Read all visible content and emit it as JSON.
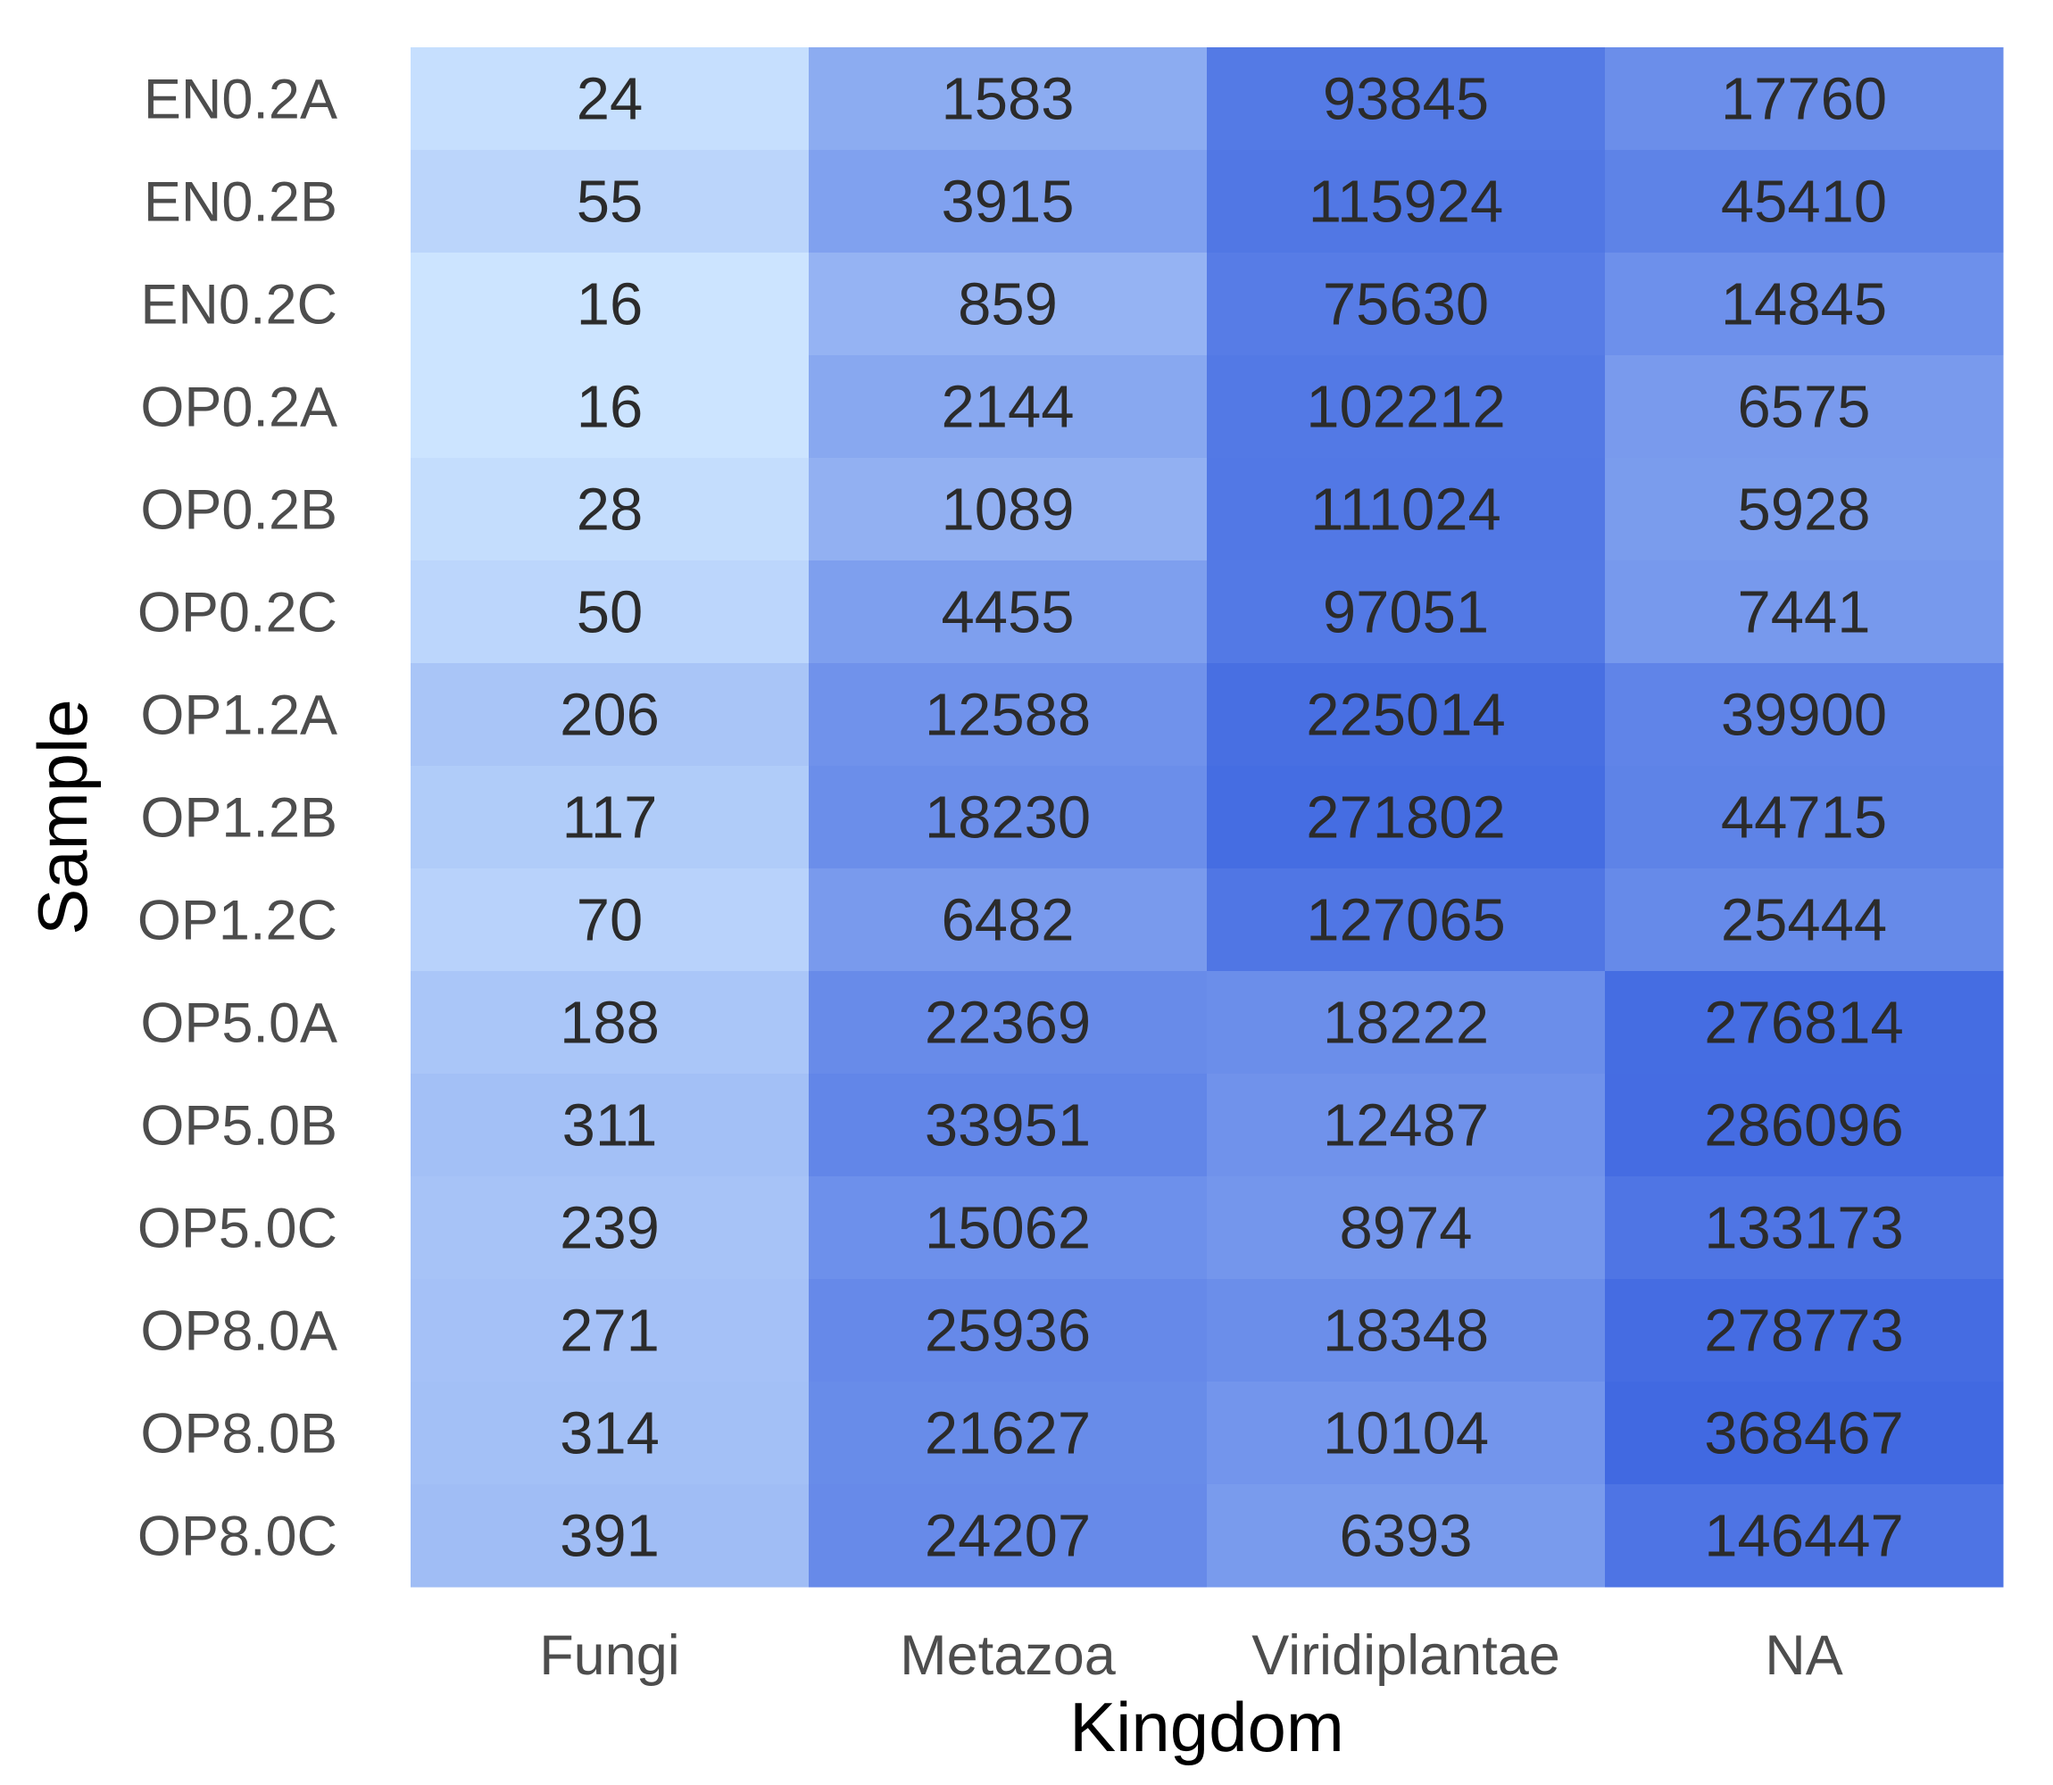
{
  "chart_data": {
    "type": "heatmap",
    "xlabel": "Kingdom",
    "ylabel": "Sample",
    "x_categories": [
      "Fungi",
      "Metazoa",
      "Viridiplantae",
      "NA"
    ],
    "y_categories": [
      "EN0.2A",
      "EN0.2B",
      "EN0.2C",
      "OP0.2A",
      "OP0.2B",
      "OP0.2C",
      "OP1.2A",
      "OP1.2B",
      "OP1.2C",
      "OP5.0A",
      "OP5.0B",
      "OP5.0C",
      "OP8.0A",
      "OP8.0B",
      "OP8.0C"
    ],
    "values": [
      [
        24,
        1583,
        93845,
        17760
      ],
      [
        55,
        3915,
        115924,
        45410
      ],
      [
        16,
        859,
        75630,
        14845
      ],
      [
        16,
        2144,
        102212,
        6575
      ],
      [
        28,
        1089,
        111024,
        5928
      ],
      [
        50,
        4455,
        97051,
        7441
      ],
      [
        206,
        12588,
        225014,
        39900
      ],
      [
        117,
        18230,
        271802,
        44715
      ],
      [
        70,
        6482,
        127065,
        25444
      ],
      [
        188,
        22369,
        18222,
        276814
      ],
      [
        311,
        33951,
        12487,
        286096
      ],
      [
        239,
        15062,
        8974,
        133173
      ],
      [
        271,
        25936,
        18348,
        278773
      ],
      [
        314,
        21627,
        10104,
        368467
      ],
      [
        391,
        24207,
        6393,
        146447
      ]
    ],
    "color_scale": {
      "low": "#cce4ff",
      "high": "#4169e1",
      "transform": "log"
    },
    "grid": false,
    "legend": "none"
  }
}
